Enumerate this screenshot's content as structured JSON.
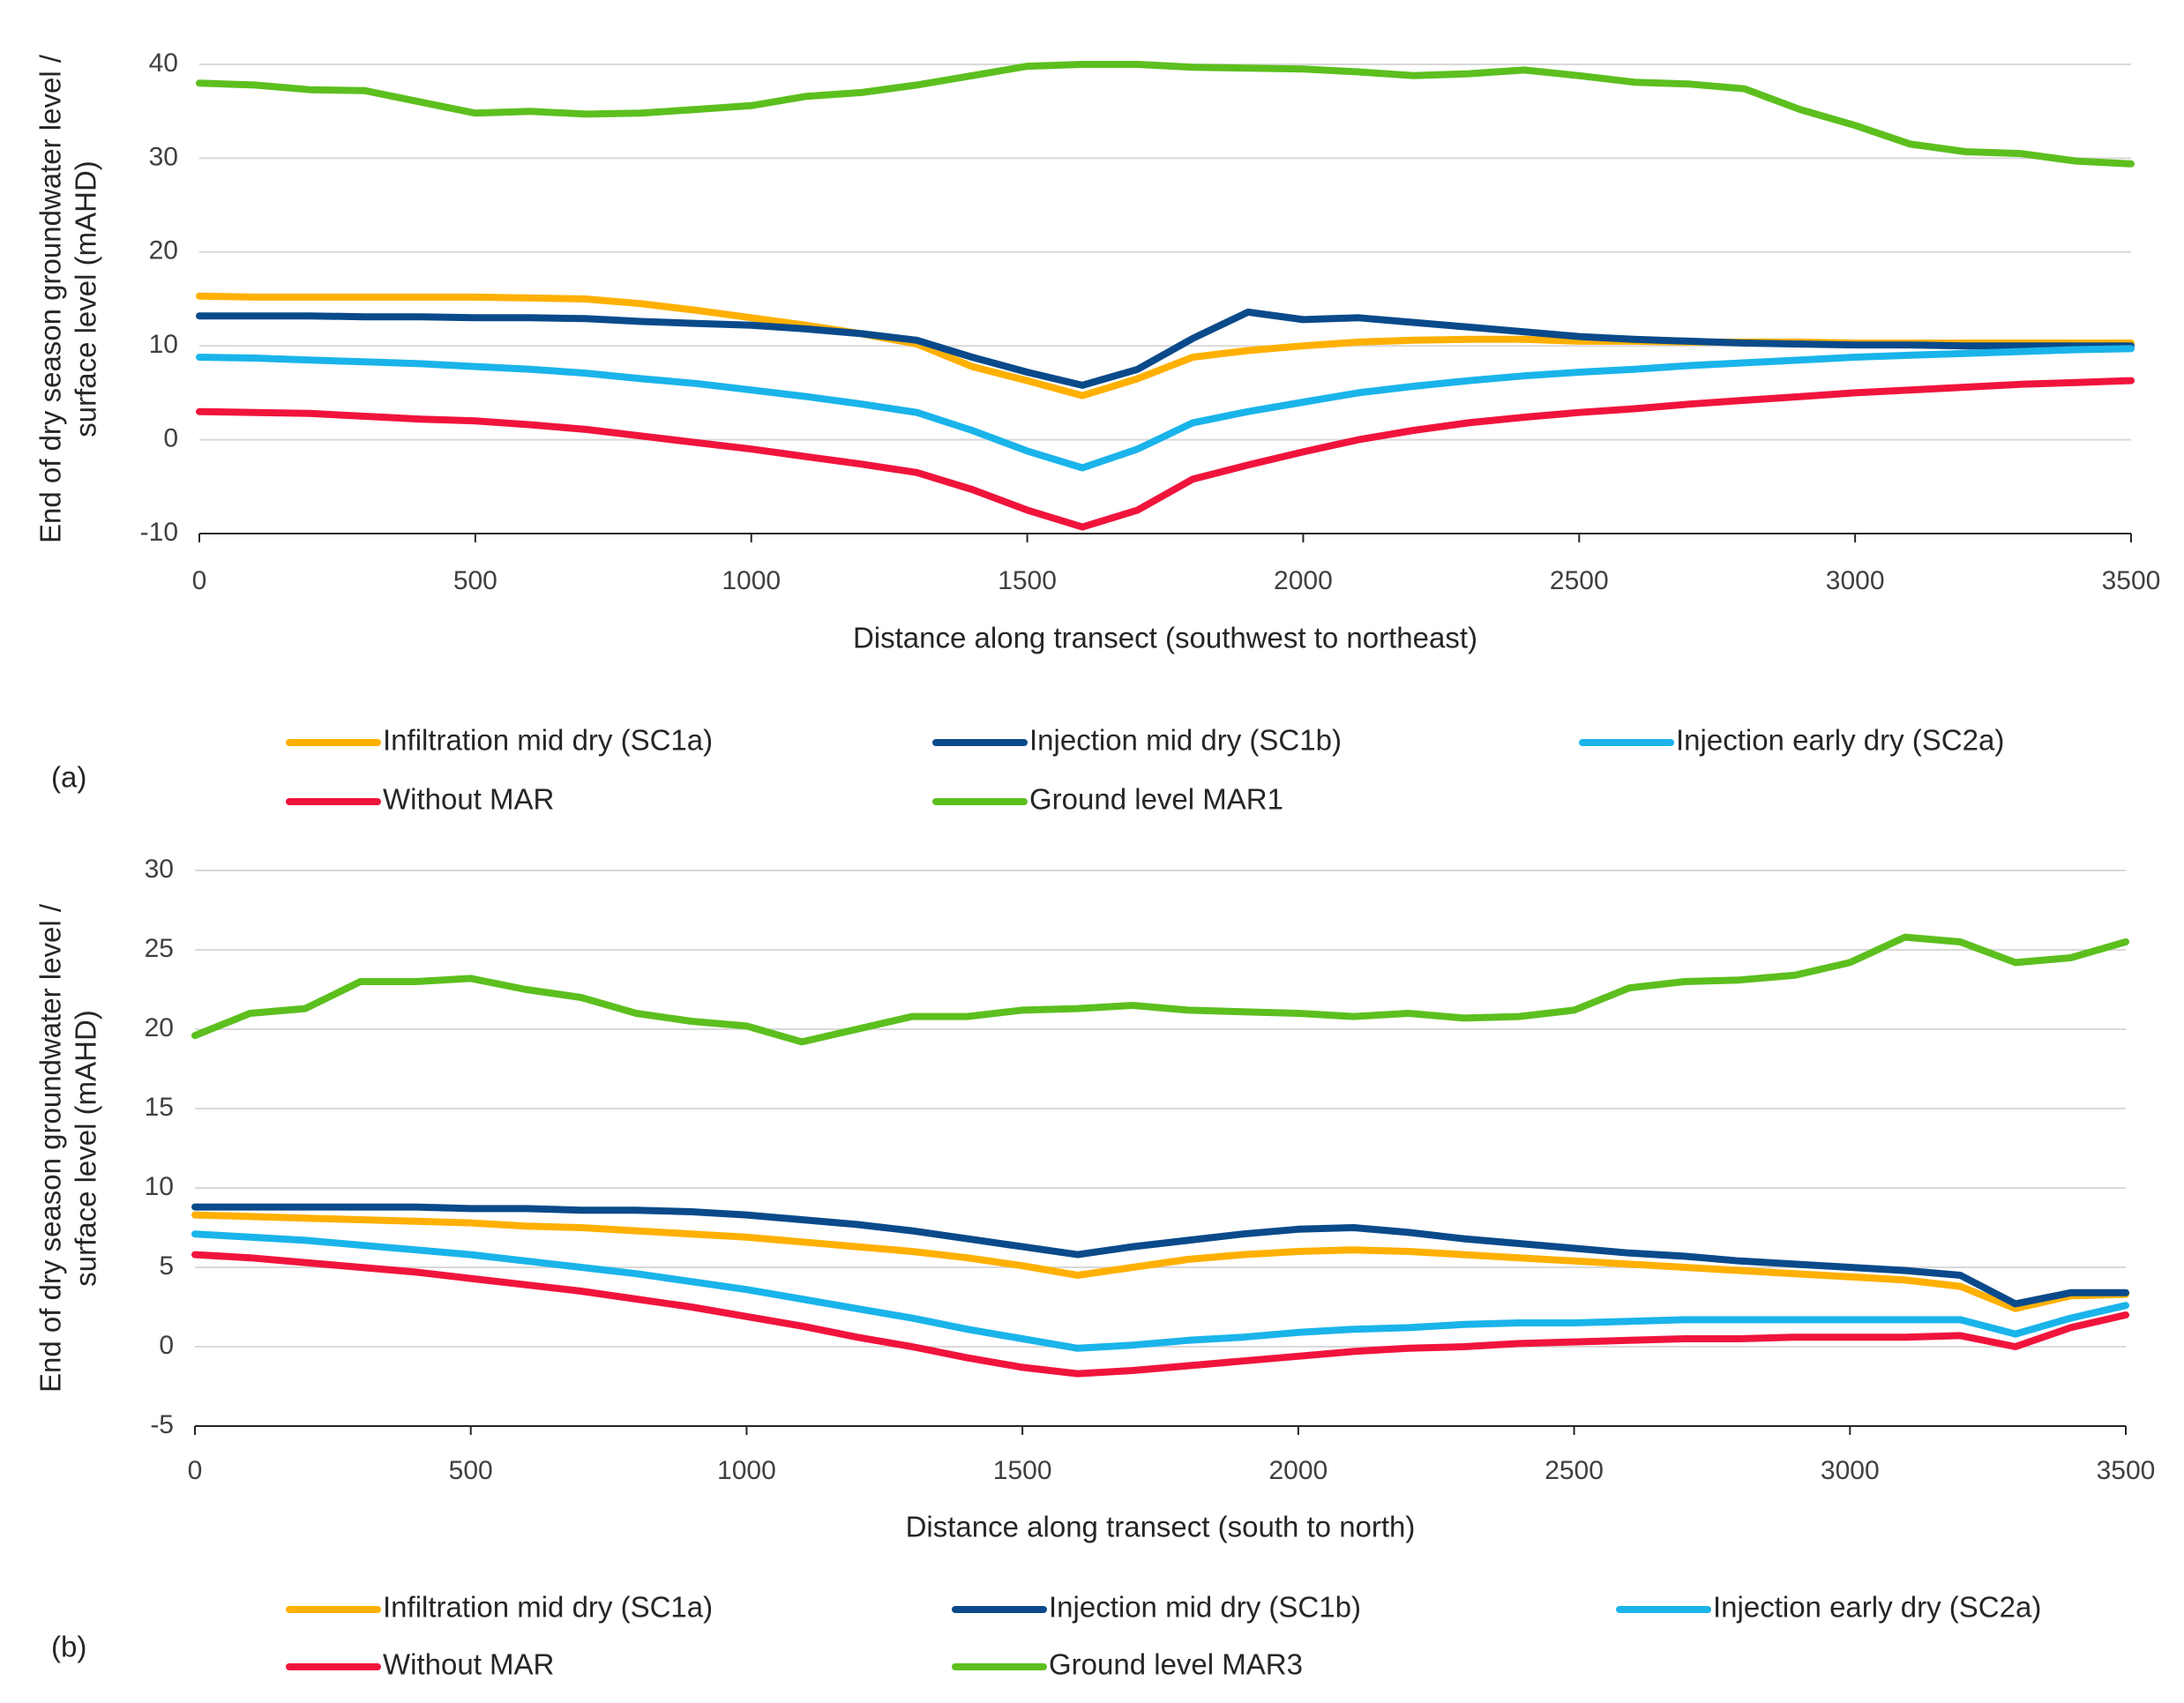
{
  "chart_data": [
    {
      "type": "line",
      "panel_label": "(a)",
      "xlabel": "Distance along transect (southwest to northeast)",
      "ylabel": [
        "End of dry season groundwater level /",
        "surface level  (mAHD)"
      ],
      "xlim": [
        0,
        3500
      ],
      "xticks": [
        0,
        500,
        1000,
        1500,
        2000,
        2500,
        3000,
        3500
      ],
      "ylim": [
        -10,
        40
      ],
      "yticks": [
        -10,
        0,
        10,
        20,
        30,
        40
      ],
      "grid": true,
      "x": [
        0,
        100,
        200,
        300,
        400,
        500,
        600,
        700,
        800,
        900,
        1000,
        1100,
        1200,
        1300,
        1400,
        1500,
        1600,
        1700,
        1800,
        1900,
        2000,
        2100,
        2200,
        2300,
        2400,
        2500,
        2600,
        2700,
        2800,
        2900,
        3000,
        3100,
        3200,
        3300,
        3400,
        3500
      ],
      "series": [
        {
          "name": "Infiltration mid dry (SC1a)",
          "color": "#ffb000",
          "values": [
            15.3,
            15.2,
            15.2,
            15.2,
            15.2,
            15.2,
            15.1,
            15,
            14.5,
            13.8,
            13,
            12.2,
            11.3,
            10.2,
            7.8,
            6.3,
            4.7,
            6.5,
            8.8,
            9.5,
            10,
            10.4,
            10.6,
            10.7,
            10.7,
            10.5,
            10.5,
            10.4,
            10.4,
            10.4,
            10.3,
            10.3,
            10.3,
            10.3,
            10.3,
            10.3
          ]
        },
        {
          "name": "Injection mid dry (SC1b)",
          "color": "#0a4a8a",
          "values": [
            13.2,
            13.2,
            13.2,
            13.1,
            13.1,
            13,
            13,
            12.9,
            12.6,
            12.4,
            12.2,
            11.8,
            11.3,
            10.6,
            8.8,
            7.2,
            5.8,
            7.5,
            10.8,
            13.6,
            12.8,
            13,
            12.5,
            12,
            11.5,
            11,
            10.7,
            10.5,
            10.3,
            10.2,
            10.1,
            10.1,
            10,
            10,
            10,
            10
          ]
        },
        {
          "name": "Injection early dry (SC2a)",
          "color": "#1ab4ea",
          "values": [
            8.8,
            8.7,
            8.5,
            8.3,
            8.1,
            7.8,
            7.5,
            7.1,
            6.5,
            6,
            5.3,
            4.6,
            3.8,
            2.9,
            1,
            -1.2,
            -3,
            -1,
            1.8,
            3,
            4,
            5,
            5.7,
            6.3,
            6.8,
            7.2,
            7.5,
            7.9,
            8.2,
            8.5,
            8.8,
            9,
            9.2,
            9.4,
            9.6,
            9.7
          ]
        },
        {
          "name": "Without MAR",
          "color": "#f0143c",
          "values": [
            3,
            2.9,
            2.8,
            2.5,
            2.2,
            2,
            1.6,
            1.1,
            0.4,
            -0.3,
            -1,
            -1.8,
            -2.6,
            -3.5,
            -5.3,
            -7.5,
            -9.3,
            -7.5,
            -4.2,
            -2.7,
            -1.3,
            0,
            1,
            1.8,
            2.4,
            2.9,
            3.3,
            3.8,
            4.2,
            4.6,
            5,
            5.3,
            5.6,
            5.9,
            6.1,
            6.3
          ]
        },
        {
          "name": "Ground level MAR1",
          "color": "#5cbf1e",
          "values": [
            38,
            37.8,
            37.3,
            37.2,
            36,
            34.8,
            35,
            34.7,
            34.8,
            35.2,
            35.6,
            36.6,
            37,
            37.8,
            38.8,
            39.8,
            40,
            40,
            39.7,
            39.6,
            39.5,
            39.2,
            38.8,
            39,
            39.4,
            38.8,
            38.1,
            37.9,
            37.4,
            35.2,
            33.5,
            31.5,
            30.7,
            30.5,
            29.7,
            29.4
          ]
        }
      ]
    },
    {
      "type": "line",
      "panel_label": "(b)",
      "xlabel": "Distance along transect (south to north)",
      "ylabel": [
        "End of dry season groundwater level /",
        "surface level  (mAHD)"
      ],
      "xlim": [
        0,
        3500
      ],
      "xticks": [
        0,
        500,
        1000,
        1500,
        2000,
        2500,
        3000,
        3500
      ],
      "ylim": [
        -5,
        30
      ],
      "yticks": [
        -5,
        0,
        5,
        10,
        15,
        20,
        25,
        30
      ],
      "grid": true,
      "x": [
        0,
        100,
        200,
        300,
        400,
        500,
        600,
        700,
        800,
        900,
        1000,
        1100,
        1200,
        1300,
        1400,
        1500,
        1600,
        1700,
        1800,
        1900,
        2000,
        2100,
        2200,
        2300,
        2400,
        2500,
        2600,
        2700,
        2800,
        2900,
        3000,
        3100,
        3200,
        3300,
        3400,
        3500
      ],
      "series": [
        {
          "name": "Infiltration mid dry (SC1a)",
          "color": "#ffb000",
          "values": [
            8.3,
            8.2,
            8.1,
            8,
            7.9,
            7.8,
            7.6,
            7.5,
            7.3,
            7.1,
            6.9,
            6.6,
            6.3,
            6,
            5.6,
            5.1,
            4.5,
            5,
            5.5,
            5.8,
            6,
            6.1,
            6,
            5.8,
            5.6,
            5.4,
            5.2,
            5,
            4.8,
            4.6,
            4.4,
            4.2,
            3.8,
            2.4,
            3.2,
            3.3
          ]
        },
        {
          "name": "Injection mid dry (SC1b)",
          "color": "#0a4a8a",
          "values": [
            8.8,
            8.8,
            8.8,
            8.8,
            8.8,
            8.7,
            8.7,
            8.6,
            8.6,
            8.5,
            8.3,
            8,
            7.7,
            7.3,
            6.8,
            6.3,
            5.8,
            6.3,
            6.7,
            7.1,
            7.4,
            7.5,
            7.2,
            6.8,
            6.5,
            6.2,
            5.9,
            5.7,
            5.4,
            5.2,
            5,
            4.8,
            4.5,
            2.7,
            3.4,
            3.4
          ]
        },
        {
          "name": "Injection early dry (SC2a)",
          "color": "#1ab4ea",
          "values": [
            7.1,
            6.9,
            6.7,
            6.4,
            6.1,
            5.8,
            5.4,
            5,
            4.6,
            4.1,
            3.6,
            3,
            2.4,
            1.8,
            1.1,
            0.5,
            -0.1,
            0.1,
            0.4,
            0.6,
            0.9,
            1.1,
            1.2,
            1.4,
            1.5,
            1.5,
            1.6,
            1.7,
            1.7,
            1.7,
            1.7,
            1.7,
            1.7,
            0.8,
            1.8,
            2.6
          ]
        },
        {
          "name": "Without MAR",
          "color": "#f0143c",
          "values": [
            5.8,
            5.6,
            5.3,
            5,
            4.7,
            4.3,
            3.9,
            3.5,
            3,
            2.5,
            1.9,
            1.3,
            0.6,
            0,
            -0.7,
            -1.3,
            -1.7,
            -1.5,
            -1.2,
            -0.9,
            -0.6,
            -0.3,
            -0.1,
            0,
            0.2,
            0.3,
            0.4,
            0.5,
            0.5,
            0.6,
            0.6,
            0.6,
            0.7,
            0,
            1.2,
            2
          ]
        },
        {
          "name": "Ground level MAR3",
          "color": "#5cbf1e",
          "values": [
            19.6,
            21,
            21.3,
            23,
            23,
            23.2,
            22.5,
            22,
            21,
            20.5,
            20.2,
            19.2,
            20,
            20.8,
            20.8,
            21.2,
            21.3,
            21.5,
            21.2,
            21.1,
            21,
            20.8,
            21,
            20.7,
            20.8,
            21.2,
            22.6,
            23,
            23.1,
            23.4,
            24.2,
            25.8,
            25.5,
            24.2,
            24.5,
            25.5
          ]
        }
      ]
    }
  ]
}
